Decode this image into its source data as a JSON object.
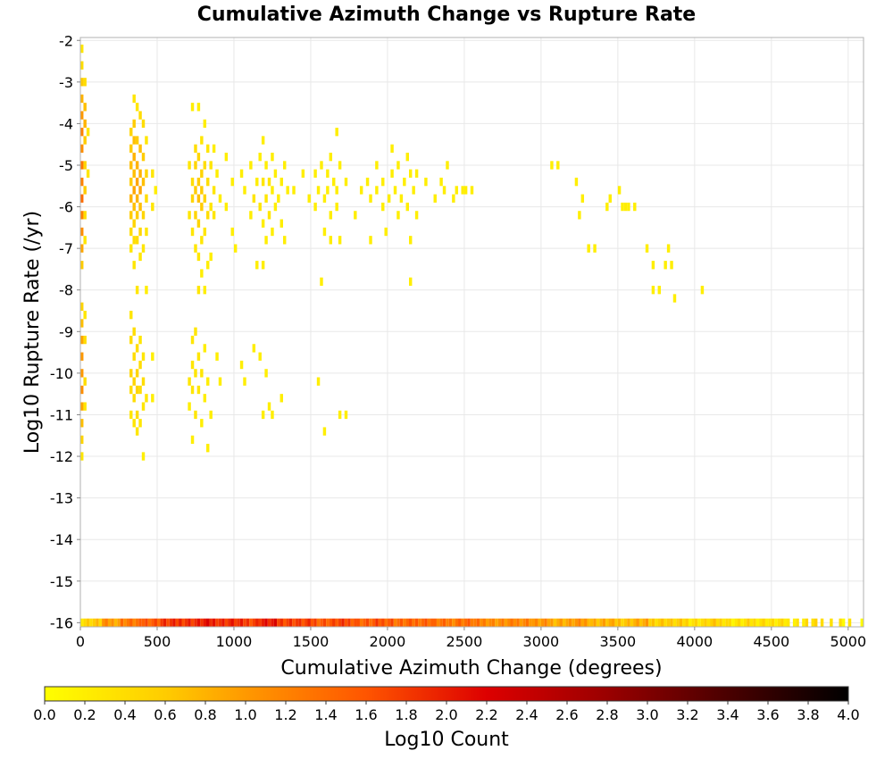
{
  "chart_data": {
    "type": "heatmap",
    "title": "Cumulative Azimuth Change vs Rupture Rate",
    "xlabel": "Cumulative Azimuth Change (degrees)",
    "ylabel": "Log10 Rupture Rate (/yr)",
    "xlim": [
      0,
      5100
    ],
    "ylim": [
      -16,
      -2
    ],
    "x_ticks": [
      0,
      500,
      1000,
      1500,
      2000,
      2500,
      3000,
      3500,
      4000,
      4500,
      5000
    ],
    "x_tick_labels": [
      "0",
      "500",
      "1000",
      "1500",
      "2000",
      "2500",
      "3000",
      "3500",
      "4000",
      "4500",
      "5000"
    ],
    "y_ticks": [
      -2,
      -3,
      -4,
      -5,
      -6,
      -7,
      -8,
      -9,
      -10,
      -11,
      -12,
      -13,
      -14,
      -15,
      -16
    ],
    "y_tick_labels": [
      "-2",
      "-3",
      "-4",
      "-5",
      "-6",
      "-7",
      "-8",
      "-9",
      "-10",
      "-11",
      "-12",
      "-13",
      "-14",
      "-15",
      "-16"
    ],
    "grid": true,
    "bin_width_x": 20,
    "bin_height_y": 0.2,
    "colorbar": {
      "label": "Log10 Count",
      "range": [
        0.0,
        4.0
      ],
      "ticks": [
        "0.0",
        "0.2",
        "0.4",
        "0.6",
        "0.8",
        "1.0",
        "1.2",
        "1.4",
        "1.6",
        "1.8",
        "2.0",
        "2.2",
        "2.4",
        "2.6",
        "2.8",
        "3.0",
        "3.2",
        "3.4",
        "3.6",
        "3.8",
        "4.0"
      ],
      "colors": [
        "#ffff00",
        "#ffd000",
        "#ffa000",
        "#ff6000",
        "#e00000",
        "#a00000",
        "#500000",
        "#000000"
      ]
    },
    "cells": [
      [
        0,
        -2.2,
        0.3
      ],
      [
        0,
        -2.6,
        0.4
      ],
      [
        0,
        -3.0,
        0.6
      ],
      [
        0,
        -3.4,
        0.8
      ],
      [
        0,
        -3.8,
        1.0
      ],
      [
        0,
        -4.2,
        1.2
      ],
      [
        0,
        -4.6,
        1.1
      ],
      [
        0,
        -5.0,
        1.3
      ],
      [
        0,
        -5.4,
        1.2
      ],
      [
        0,
        -5.8,
        1.4
      ],
      [
        0,
        -6.2,
        1.2
      ],
      [
        0,
        -6.6,
        1.1
      ],
      [
        0,
        -7.0,
        0.9
      ],
      [
        0,
        -7.4,
        0.6
      ],
      [
        0,
        -8.4,
        0.5
      ],
      [
        0,
        -8.8,
        0.7
      ],
      [
        0,
        -9.2,
        0.9
      ],
      [
        0,
        -9.6,
        1.0
      ],
      [
        0,
        -10.0,
        1.0
      ],
      [
        0,
        -10.4,
        1.1
      ],
      [
        0,
        -10.8,
        0.9
      ],
      [
        0,
        -11.2,
        0.7
      ],
      [
        0,
        -11.6,
        0.5
      ],
      [
        0,
        -12.0,
        0.3
      ],
      [
        20,
        -3.0,
        0.4
      ],
      [
        20,
        -3.6,
        0.7
      ],
      [
        20,
        -4.0,
        0.8
      ],
      [
        20,
        -4.4,
        0.6
      ],
      [
        20,
        -5.0,
        0.5
      ],
      [
        20,
        -5.6,
        0.6
      ],
      [
        20,
        -6.2,
        0.4
      ],
      [
        20,
        -6.8,
        0.3
      ],
      [
        20,
        -8.6,
        0.3
      ],
      [
        20,
        -9.2,
        0.4
      ],
      [
        20,
        -10.2,
        0.4
      ],
      [
        20,
        -10.8,
        0.3
      ],
      [
        40,
        -4.2,
        0.3
      ],
      [
        40,
        -5.2,
        0.3
      ],
      [
        320,
        -4.2,
        0.5
      ],
      [
        320,
        -4.6,
        0.6
      ],
      [
        320,
        -5.0,
        0.7
      ],
      [
        320,
        -5.4,
        0.6
      ],
      [
        320,
        -5.8,
        0.8
      ],
      [
        320,
        -6.2,
        0.6
      ],
      [
        320,
        -6.6,
        0.4
      ],
      [
        320,
        -7.0,
        0.3
      ],
      [
        320,
        -8.6,
        0.3
      ],
      [
        320,
        -9.2,
        0.4
      ],
      [
        320,
        -10.0,
        0.5
      ],
      [
        320,
        -10.4,
        0.4
      ],
      [
        320,
        -11.0,
        0.3
      ],
      [
        340,
        -3.4,
        0.3
      ],
      [
        340,
        -4.0,
        0.6
      ],
      [
        340,
        -4.4,
        0.7
      ],
      [
        340,
        -4.8,
        0.8
      ],
      [
        340,
        -5.2,
        0.7
      ],
      [
        340,
        -5.6,
        0.9
      ],
      [
        340,
        -6.0,
        0.7
      ],
      [
        340,
        -6.4,
        0.5
      ],
      [
        340,
        -6.8,
        0.4
      ],
      [
        340,
        -7.4,
        0.3
      ],
      [
        340,
        -9.0,
        0.4
      ],
      [
        340,
        -9.6,
        0.4
      ],
      [
        340,
        -10.2,
        0.5
      ],
      [
        340,
        -10.6,
        0.4
      ],
      [
        340,
        -11.2,
        0.3
      ],
      [
        360,
        -3.6,
        0.3
      ],
      [
        360,
        -4.4,
        0.6
      ],
      [
        360,
        -5.0,
        0.8
      ],
      [
        360,
        -5.4,
        0.9
      ],
      [
        360,
        -5.8,
        0.8
      ],
      [
        360,
        -6.2,
        0.6
      ],
      [
        360,
        -6.8,
        0.4
      ],
      [
        360,
        -8.0,
        0.3
      ],
      [
        360,
        -9.4,
        0.4
      ],
      [
        360,
        -10.0,
        0.5
      ],
      [
        360,
        -10.4,
        0.5
      ],
      [
        360,
        -11.0,
        0.4
      ],
      [
        360,
        -11.4,
        0.3
      ],
      [
        380,
        -3.8,
        0.4
      ],
      [
        380,
        -4.6,
        0.7
      ],
      [
        380,
        -5.2,
        0.8
      ],
      [
        380,
        -5.6,
        0.9
      ],
      [
        380,
        -6.0,
        0.7
      ],
      [
        380,
        -6.6,
        0.5
      ],
      [
        380,
        -7.2,
        0.3
      ],
      [
        380,
        -9.2,
        0.3
      ],
      [
        380,
        -9.8,
        0.4
      ],
      [
        380,
        -10.4,
        0.4
      ],
      [
        380,
        -11.2,
        0.3
      ],
      [
        400,
        -4.0,
        0.4
      ],
      [
        400,
        -4.8,
        0.6
      ],
      [
        400,
        -5.4,
        0.7
      ],
      [
        400,
        -6.2,
        0.5
      ],
      [
        400,
        -7.0,
        0.3
      ],
      [
        400,
        -9.6,
        0.3
      ],
      [
        400,
        -10.2,
        0.4
      ],
      [
        400,
        -10.8,
        0.3
      ],
      [
        400,
        -12.0,
        0.2
      ],
      [
        420,
        -4.4,
        0.3
      ],
      [
        420,
        -5.2,
        0.5
      ],
      [
        420,
        -5.8,
        0.4
      ],
      [
        420,
        -6.6,
        0.3
      ],
      [
        420,
        -8.0,
        0.2
      ],
      [
        420,
        -10.6,
        0.3
      ],
      [
        460,
        -5.2,
        0.3
      ],
      [
        460,
        -6.0,
        0.3
      ],
      [
        460,
        -9.6,
        0.2
      ],
      [
        460,
        -10.6,
        0.2
      ],
      [
        480,
        -5.6,
        0.2
      ],
      [
        700,
        -5.0,
        0.3
      ],
      [
        700,
        -6.2,
        0.3
      ],
      [
        700,
        -10.2,
        0.3
      ],
      [
        700,
        -10.8,
        0.2
      ],
      [
        720,
        -3.6,
        0.2
      ],
      [
        720,
        -5.4,
        0.4
      ],
      [
        720,
        -5.8,
        0.5
      ],
      [
        720,
        -6.6,
        0.3
      ],
      [
        720,
        -9.2,
        0.3
      ],
      [
        720,
        -9.8,
        0.3
      ],
      [
        720,
        -10.4,
        0.3
      ],
      [
        720,
        -11.6,
        0.2
      ],
      [
        740,
        -4.6,
        0.4
      ],
      [
        740,
        -5.0,
        0.5
      ],
      [
        740,
        -5.6,
        0.6
      ],
      [
        740,
        -6.2,
        0.5
      ],
      [
        740,
        -7.0,
        0.3
      ],
      [
        740,
        -9.0,
        0.3
      ],
      [
        740,
        -10.0,
        0.3
      ],
      [
        740,
        -11.0,
        0.3
      ],
      [
        760,
        -3.6,
        0.2
      ],
      [
        760,
        -4.8,
        0.5
      ],
      [
        760,
        -5.4,
        0.6
      ],
      [
        760,
        -5.8,
        0.7
      ],
      [
        760,
        -6.4,
        0.5
      ],
      [
        760,
        -7.2,
        0.3
      ],
      [
        760,
        -8.0,
        0.3
      ],
      [
        760,
        -9.6,
        0.3
      ],
      [
        760,
        -10.4,
        0.3
      ],
      [
        780,
        -4.4,
        0.3
      ],
      [
        780,
        -5.2,
        0.5
      ],
      [
        780,
        -5.6,
        0.6
      ],
      [
        780,
        -6.0,
        0.6
      ],
      [
        780,
        -6.8,
        0.3
      ],
      [
        780,
        -7.6,
        0.2
      ],
      [
        780,
        -10.0,
        0.3
      ],
      [
        780,
        -11.2,
        0.2
      ],
      [
        800,
        -4.0,
        0.2
      ],
      [
        800,
        -5.0,
        0.4
      ],
      [
        800,
        -5.8,
        0.5
      ],
      [
        800,
        -6.6,
        0.3
      ],
      [
        800,
        -8.0,
        0.2
      ],
      [
        800,
        -9.4,
        0.2
      ],
      [
        800,
        -10.6,
        0.2
      ],
      [
        820,
        -4.6,
        0.3
      ],
      [
        820,
        -5.4,
        0.4
      ],
      [
        820,
        -6.2,
        0.4
      ],
      [
        820,
        -7.4,
        0.2
      ],
      [
        820,
        -10.2,
        0.2
      ],
      [
        820,
        -11.8,
        0.2
      ],
      [
        840,
        -5.0,
        0.3
      ],
      [
        840,
        -6.0,
        0.3
      ],
      [
        840,
        -7.2,
        0.2
      ],
      [
        840,
        -11.0,
        0.2
      ],
      [
        860,
        -4.6,
        0.2
      ],
      [
        860,
        -5.6,
        0.3
      ],
      [
        860,
        -6.2,
        0.3
      ],
      [
        880,
        -5.2,
        0.2
      ],
      [
        880,
        -9.6,
        0.2
      ],
      [
        900,
        -5.8,
        0.2
      ],
      [
        900,
        -10.2,
        0.2
      ],
      [
        940,
        -4.8,
        0.2
      ],
      [
        940,
        -6.0,
        0.2
      ],
      [
        980,
        -5.4,
        0.2
      ],
      [
        980,
        -6.6,
        0.2
      ],
      [
        1000,
        -7.0,
        0.2
      ],
      [
        1040,
        -5.2,
        0.2
      ],
      [
        1040,
        -9.8,
        0.2
      ],
      [
        1060,
        -5.6,
        0.2
      ],
      [
        1060,
        -10.2,
        0.2
      ],
      [
        1100,
        -5.0,
        0.2
      ],
      [
        1100,
        -6.2,
        0.2
      ],
      [
        1120,
        -5.8,
        0.3
      ],
      [
        1120,
        -9.4,
        0.2
      ],
      [
        1140,
        -5.4,
        0.2
      ],
      [
        1140,
        -7.4,
        0.2
      ],
      [
        1160,
        -4.8,
        0.2
      ],
      [
        1160,
        -6.0,
        0.3
      ],
      [
        1160,
        -9.6,
        0.2
      ],
      [
        1180,
        -4.4,
        0.2
      ],
      [
        1180,
        -5.4,
        0.3
      ],
      [
        1180,
        -6.4,
        0.2
      ],
      [
        1180,
        -7.4,
        0.2
      ],
      [
        1180,
        -11.0,
        0.2
      ],
      [
        1200,
        -5.0,
        0.2
      ],
      [
        1200,
        -5.8,
        0.3
      ],
      [
        1200,
        -6.8,
        0.2
      ],
      [
        1200,
        -10.0,
        0.2
      ],
      [
        1220,
        -5.4,
        0.3
      ],
      [
        1220,
        -6.2,
        0.3
      ],
      [
        1220,
        -10.8,
        0.2
      ],
      [
        1240,
        -4.8,
        0.2
      ],
      [
        1240,
        -5.6,
        0.2
      ],
      [
        1240,
        -6.6,
        0.2
      ],
      [
        1240,
        -11.0,
        0.2
      ],
      [
        1260,
        -5.2,
        0.2
      ],
      [
        1260,
        -6.0,
        0.2
      ],
      [
        1280,
        -5.8,
        0.2
      ],
      [
        1300,
        -5.4,
        0.2
      ],
      [
        1300,
        -6.4,
        0.2
      ],
      [
        1300,
        -10.6,
        0.2
      ],
      [
        1320,
        -5.0,
        0.2
      ],
      [
        1320,
        -6.8,
        0.2
      ],
      [
        1340,
        -5.6,
        0.2
      ],
      [
        1380,
        -5.6,
        0.2
      ],
      [
        1440,
        -5.2,
        0.2
      ],
      [
        1480,
        -5.8,
        0.2
      ],
      [
        1520,
        -5.2,
        0.2
      ],
      [
        1520,
        -6.0,
        0.2
      ],
      [
        1540,
        -5.6,
        0.2
      ],
      [
        1540,
        -10.2,
        0.2
      ],
      [
        1560,
        -5.0,
        0.2
      ],
      [
        1560,
        -7.8,
        0.2
      ],
      [
        1580,
        -5.8,
        0.2
      ],
      [
        1580,
        -6.6,
        0.2
      ],
      [
        1580,
        -11.4,
        0.2
      ],
      [
        1600,
        -5.2,
        0.2
      ],
      [
        1600,
        -5.6,
        0.2
      ],
      [
        1620,
        -4.8,
        0.2
      ],
      [
        1620,
        -6.2,
        0.2
      ],
      [
        1620,
        -6.8,
        0.2
      ],
      [
        1640,
        -5.4,
        0.2
      ],
      [
        1660,
        -4.2,
        0.2
      ],
      [
        1660,
        -5.6,
        0.2
      ],
      [
        1660,
        -6.0,
        0.2
      ],
      [
        1680,
        -5.0,
        0.2
      ],
      [
        1680,
        -6.8,
        0.2
      ],
      [
        1680,
        -11.0,
        0.2
      ],
      [
        1720,
        -5.4,
        0.2
      ],
      [
        1720,
        -11.0,
        0.2
      ],
      [
        1780,
        -6.2,
        0.2
      ],
      [
        1820,
        -5.6,
        0.2
      ],
      [
        1860,
        -5.4,
        0.2
      ],
      [
        1880,
        -5.8,
        0.2
      ],
      [
        1880,
        -6.8,
        0.2
      ],
      [
        1920,
        -5.0,
        0.2
      ],
      [
        1920,
        -5.6,
        0.2
      ],
      [
        1960,
        -5.4,
        0.2
      ],
      [
        1960,
        -6.0,
        0.2
      ],
      [
        1980,
        -6.6,
        0.2
      ],
      [
        2000,
        -5.8,
        0.2
      ],
      [
        2020,
        -4.6,
        0.2
      ],
      [
        2020,
        -5.2,
        0.2
      ],
      [
        2040,
        -5.6,
        0.2
      ],
      [
        2060,
        -5.0,
        0.2
      ],
      [
        2060,
        -6.2,
        0.2
      ],
      [
        2080,
        -5.8,
        0.2
      ],
      [
        2100,
        -5.4,
        0.2
      ],
      [
        2120,
        -4.8,
        0.2
      ],
      [
        2120,
        -6.0,
        0.2
      ],
      [
        2140,
        -5.2,
        0.2
      ],
      [
        2140,
        -6.8,
        0.2
      ],
      [
        2140,
        -7.8,
        0.2
      ],
      [
        2160,
        -5.6,
        0.2
      ],
      [
        2180,
        -5.2,
        0.2
      ],
      [
        2180,
        -6.2,
        0.2
      ],
      [
        2240,
        -5.4,
        0.2
      ],
      [
        2300,
        -5.8,
        0.2
      ],
      [
        2340,
        -5.4,
        0.2
      ],
      [
        2360,
        -5.6,
        0.2
      ],
      [
        2380,
        -5.0,
        0.2
      ],
      [
        2420,
        -5.8,
        0.2
      ],
      [
        2440,
        -5.6,
        0.2
      ],
      [
        2480,
        -5.6,
        0.2
      ],
      [
        2500,
        -5.6,
        0.2
      ],
      [
        2540,
        -5.6,
        0.2
      ],
      [
        3060,
        -5.0,
        0.2
      ],
      [
        3100,
        -5.0,
        0.2
      ],
      [
        3220,
        -5.4,
        0.2
      ],
      [
        3240,
        -6.2,
        0.2
      ],
      [
        3260,
        -5.8,
        0.2
      ],
      [
        3300,
        -7.0,
        0.2
      ],
      [
        3340,
        -7.0,
        0.2
      ],
      [
        3420,
        -6.0,
        0.2
      ],
      [
        3440,
        -5.8,
        0.2
      ],
      [
        3500,
        -5.6,
        0.2
      ],
      [
        3520,
        -6.0,
        0.2
      ],
      [
        3540,
        -6.0,
        0.2
      ],
      [
        3560,
        -6.0,
        0.2
      ],
      [
        3600,
        -6.0,
        0.2
      ],
      [
        3680,
        -7.0,
        0.2
      ],
      [
        3720,
        -7.4,
        0.2
      ],
      [
        3720,
        -8.0,
        0.2
      ],
      [
        3760,
        -8.0,
        0.2
      ],
      [
        3800,
        -7.4,
        0.2
      ],
      [
        3820,
        -7.0,
        0.2
      ],
      [
        3840,
        -7.4,
        0.2
      ],
      [
        3860,
        -8.2,
        0.2
      ],
      [
        4040,
        -8.0,
        0.2
      ]
    ],
    "bottom_row": {
      "y": -16.0,
      "x_start": 0,
      "x_end": 5100,
      "bin": 20,
      "comment_free": true
    }
  }
}
